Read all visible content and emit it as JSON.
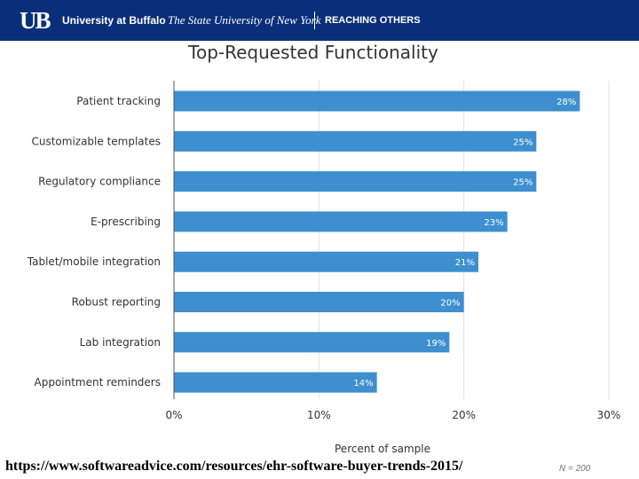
{
  "header": {
    "logo": "UB",
    "university": "University at Buffalo",
    "subtitle": "The State University of New York",
    "tagline": "REACHING OTHERS"
  },
  "chart_data": {
    "type": "bar",
    "orientation": "horizontal",
    "title": "Top-Requested Functionality",
    "xlabel": "Percent of sample",
    "ylabel": "",
    "categories": [
      "Patient tracking",
      "Customizable templates",
      "Regulatory compliance",
      "E-prescribing",
      "Tablet/mobile integration",
      "Robust reporting",
      "Lab integration",
      "Appointment reminders"
    ],
    "values": [
      28,
      25,
      25,
      23,
      21,
      20,
      19,
      14
    ],
    "value_labels": [
      "28%",
      "25%",
      "25%",
      "23%",
      "21%",
      "20%",
      "19%",
      "14%"
    ],
    "xlim": [
      0,
      30
    ],
    "xticks": [
      0,
      10,
      20,
      30
    ],
    "xtick_labels": [
      "0%",
      "10%",
      "20%",
      "30%"
    ],
    "grid": "vertical",
    "bar_color": "#3d8fcf",
    "note": "N = 200"
  },
  "footer": {
    "source": "https://www.softwareadvice.com/resources/ehr-software-buyer-trends-2015/"
  }
}
